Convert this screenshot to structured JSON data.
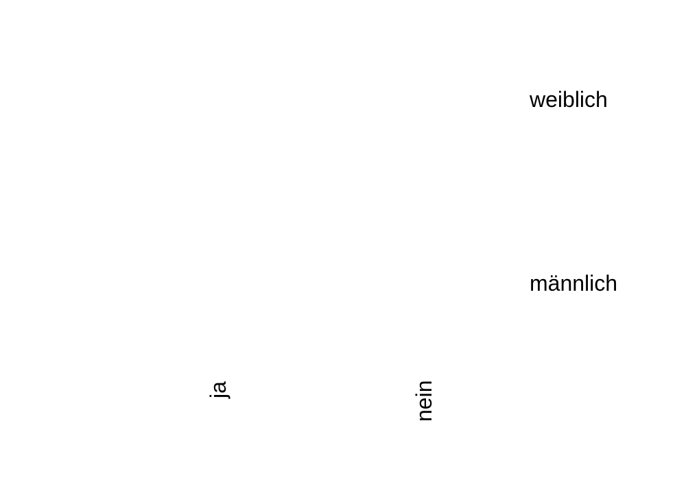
{
  "chart_data": {
    "type": "table",
    "x": {
      "categories": [
        "ja",
        "nein"
      ]
    },
    "y": {
      "categories": [
        "männlich",
        "weiblich"
      ]
    },
    "cells": [],
    "title": "",
    "xlabel": "",
    "ylabel": "",
    "grid": false,
    "legend": "none"
  }
}
